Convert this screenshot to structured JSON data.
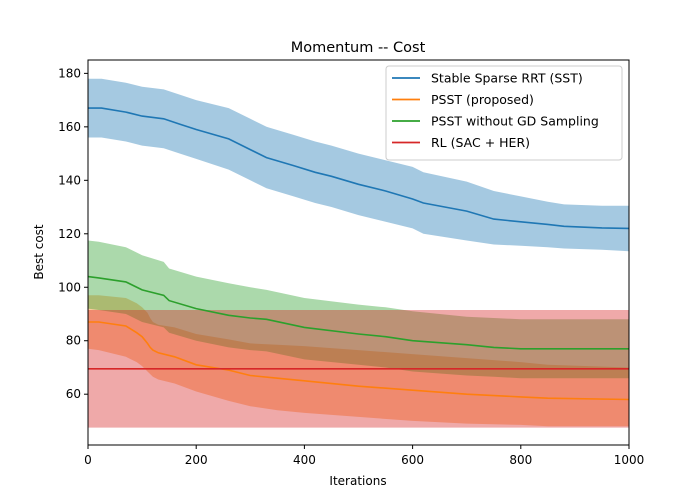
{
  "chart_data": {
    "type": "line",
    "title": "Momentum -- Cost",
    "xlabel": "Iterations",
    "ylabel": "Best cost",
    "xlim": [
      0,
      1000
    ],
    "ylim": [
      41,
      185
    ],
    "xticks": [
      0,
      200,
      400,
      600,
      800,
      1000
    ],
    "yticks": [
      60,
      80,
      100,
      120,
      140,
      160,
      180
    ],
    "grid": false,
    "legend_position": "top-right",
    "series": [
      {
        "name": "Stable Sparse RRT (SST)",
        "color": "#1f77b4",
        "fill_color": "#1f77b4",
        "band_opacity": 0.4,
        "x": [
          0,
          25,
          70,
          100,
          140,
          170,
          200,
          260,
          300,
          330,
          380,
          420,
          450,
          500,
          550,
          600,
          620,
          700,
          750,
          800,
          850,
          880,
          950,
          1000
        ],
        "y": [
          167,
          167,
          165.5,
          164,
          163,
          161,
          159,
          155.5,
          151.5,
          148.5,
          145.5,
          143,
          141.5,
          138.5,
          136,
          133,
          131.5,
          128.5,
          125.5,
          124.5,
          123.5,
          122.8,
          122.2,
          122
        ],
        "lower": [
          156,
          156,
          154.5,
          153,
          152,
          150,
          148,
          144,
          140,
          137,
          134,
          131.5,
          130,
          127,
          124.5,
          122,
          120,
          117.5,
          116,
          115.5,
          115,
          114.5,
          114,
          113.5
        ],
        "upper": [
          178,
          178,
          176.5,
          175,
          174,
          172,
          170,
          167,
          163,
          160,
          157,
          154.5,
          153,
          150,
          147.5,
          145,
          143,
          139.5,
          136,
          134,
          132,
          131,
          130.5,
          130.5
        ]
      },
      {
        "name": "PSST (proposed)",
        "color": "#ff7f0e",
        "fill_color": "#ff7f0e",
        "band_opacity": 0.4,
        "x": [
          0,
          20,
          70,
          90,
          100,
          110,
          115,
          120,
          130,
          160,
          200,
          260,
          300,
          350,
          400,
          500,
          600,
          700,
          800,
          850,
          1000
        ],
        "y": [
          87,
          87,
          85.5,
          83,
          81.5,
          79,
          77.5,
          76.5,
          75.5,
          74,
          71,
          69,
          67,
          66,
          65,
          63,
          61.5,
          60,
          59,
          58.5,
          58
        ],
        "lower": [
          77,
          76.5,
          74,
          72,
          70.5,
          68.5,
          67.5,
          66.5,
          65.5,
          64,
          61,
          57.5,
          55.5,
          54,
          53,
          51.5,
          50,
          49,
          48.5,
          48,
          48
        ],
        "upper": [
          97,
          97,
          96,
          94,
          92.5,
          90.5,
          88.5,
          87,
          86,
          85,
          82.5,
          80.5,
          79,
          78.5,
          78,
          76.5,
          75,
          73.5,
          72,
          71,
          70
        ]
      },
      {
        "name": "PSST without GD Sampling",
        "color": "#2ca02c",
        "fill_color": "#2ca02c",
        "band_opacity": 0.4,
        "x": [
          0,
          20,
          70,
          100,
          140,
          150,
          200,
          260,
          300,
          330,
          400,
          500,
          550,
          600,
          700,
          750,
          800,
          850,
          1000
        ],
        "y": [
          104,
          103.5,
          102,
          99,
          97,
          95,
          92,
          89.5,
          88.5,
          88,
          85,
          82.5,
          81.5,
          80,
          78.5,
          77.5,
          77,
          77,
          77
        ],
        "lower": [
          92,
          91.5,
          90,
          87,
          85,
          83,
          80,
          77.5,
          76.5,
          76,
          73,
          71,
          70,
          68.5,
          67,
          66.5,
          66,
          66,
          66
        ],
        "upper": [
          117.5,
          117,
          115,
          112,
          109.5,
          107,
          104,
          101.5,
          100,
          99,
          96,
          93.5,
          92.5,
          91,
          89,
          88.5,
          88,
          88,
          88
        ]
      },
      {
        "name": "RL (SAC + HER)",
        "color": "#d62728",
        "fill_color": "#d62728",
        "band_opacity": 0.4,
        "x": [
          0,
          1000
        ],
        "y": [
          69.5,
          69.5
        ],
        "lower": [
          47.5,
          47.5
        ],
        "upper": [
          91.5,
          91.5
        ]
      }
    ]
  }
}
